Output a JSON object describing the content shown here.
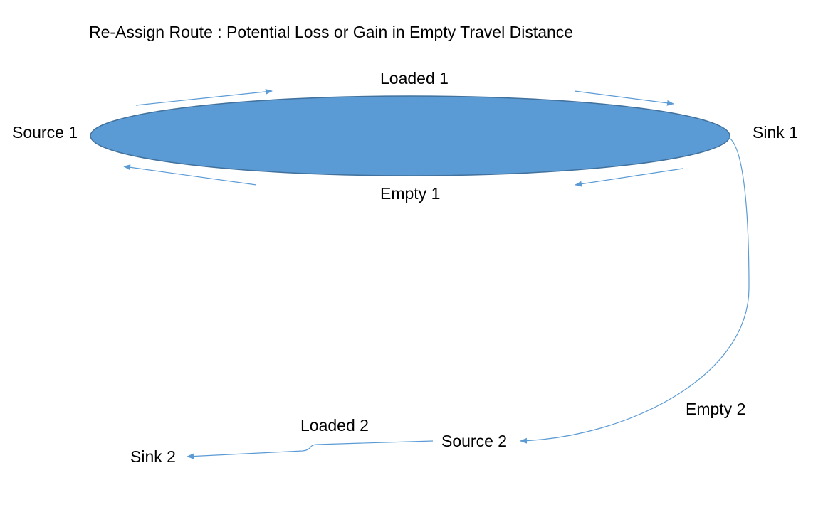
{
  "title": "Re-Assign Route : Potential Loss or Gain in Empty Travel Distance",
  "nodes": {
    "source1": "Source 1",
    "sink1": "Sink 1",
    "source2": "Source 2",
    "sink2": "Sink 2"
  },
  "edges": {
    "loaded1": "Loaded 1",
    "empty1": "Empty 1",
    "empty2": "Empty 2",
    "loaded2": "Loaded 2"
  },
  "colors": {
    "ellipse_fill": "#5b9bd5",
    "ellipse_stroke": "#41719c",
    "arrow": "#5b9bd5"
  }
}
